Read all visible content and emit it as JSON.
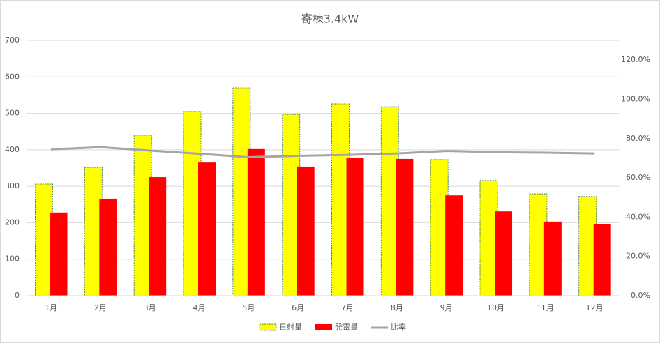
{
  "chart_data": {
    "type": "bar_line",
    "title": "寄棟3.4kW",
    "categories": [
      "1月",
      "2月",
      "3月",
      "4月",
      "5月",
      "6月",
      "7月",
      "8月",
      "9月",
      "10月",
      "11月",
      "12月"
    ],
    "series": [
      {
        "name": "日射量",
        "color": "#ffff00",
        "type": "bar",
        "values": [
          306,
          352,
          440,
          505,
          570,
          497,
          526,
          518,
          373,
          316,
          279,
          272
        ]
      },
      {
        "name": "発電量",
        "color": "#ff0000",
        "type": "bar",
        "values": [
          228,
          266,
          325,
          365,
          402,
          354,
          377,
          375,
          275,
          231,
          203,
          197
        ]
      },
      {
        "name": "比率",
        "color": "#a5a5a5",
        "type": "line",
        "axis": "y2",
        "values": [
          74.5,
          75.6,
          73.9,
          72.3,
          70.5,
          71.2,
          71.7,
          72.4,
          73.7,
          73.1,
          72.8,
          72.4
        ]
      }
    ],
    "ylim": [
      0,
      700
    ],
    "yticks": [
      0,
      100,
      200,
      300,
      400,
      500,
      600,
      700
    ],
    "y2lim": [
      0,
      130
    ],
    "y2ticks": [
      {
        "value": 0,
        "label": "0.0%"
      },
      {
        "value": 20,
        "label": "20.0%"
      },
      {
        "value": 40,
        "label": "40.0%"
      },
      {
        "value": 60,
        "label": "60.0%"
      },
      {
        "value": 80,
        "label": "80.0%"
      },
      {
        "value": 100,
        "label": "100.0%"
      },
      {
        "value": 120,
        "label": "120.0%"
      }
    ],
    "grid": true,
    "legend": "bottom"
  }
}
